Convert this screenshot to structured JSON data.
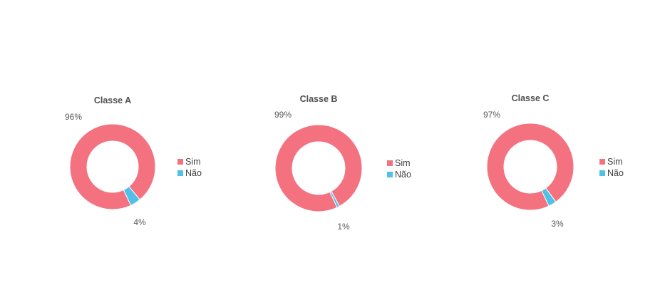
{
  "colors": {
    "sim": "#F4727F",
    "nao": "#4FC1E9"
  },
  "chart_data": [
    {
      "type": "pie",
      "title": "Classe A",
      "categories": [
        "Sim",
        "Não"
      ],
      "values": [
        96,
        4
      ],
      "labels": [
        "96%",
        "4%"
      ],
      "legend": "right"
    },
    {
      "type": "pie",
      "title": "Classe B",
      "categories": [
        "Sim",
        "Não"
      ],
      "values": [
        99,
        1
      ],
      "labels": [
        "99%",
        "1%"
      ],
      "legend": "right"
    },
    {
      "type": "pie",
      "title": "Classe C",
      "categories": [
        "Sim",
        "Não"
      ],
      "values": [
        97,
        3
      ],
      "labels": [
        "97%",
        "3%"
      ],
      "legend": "right"
    }
  ]
}
